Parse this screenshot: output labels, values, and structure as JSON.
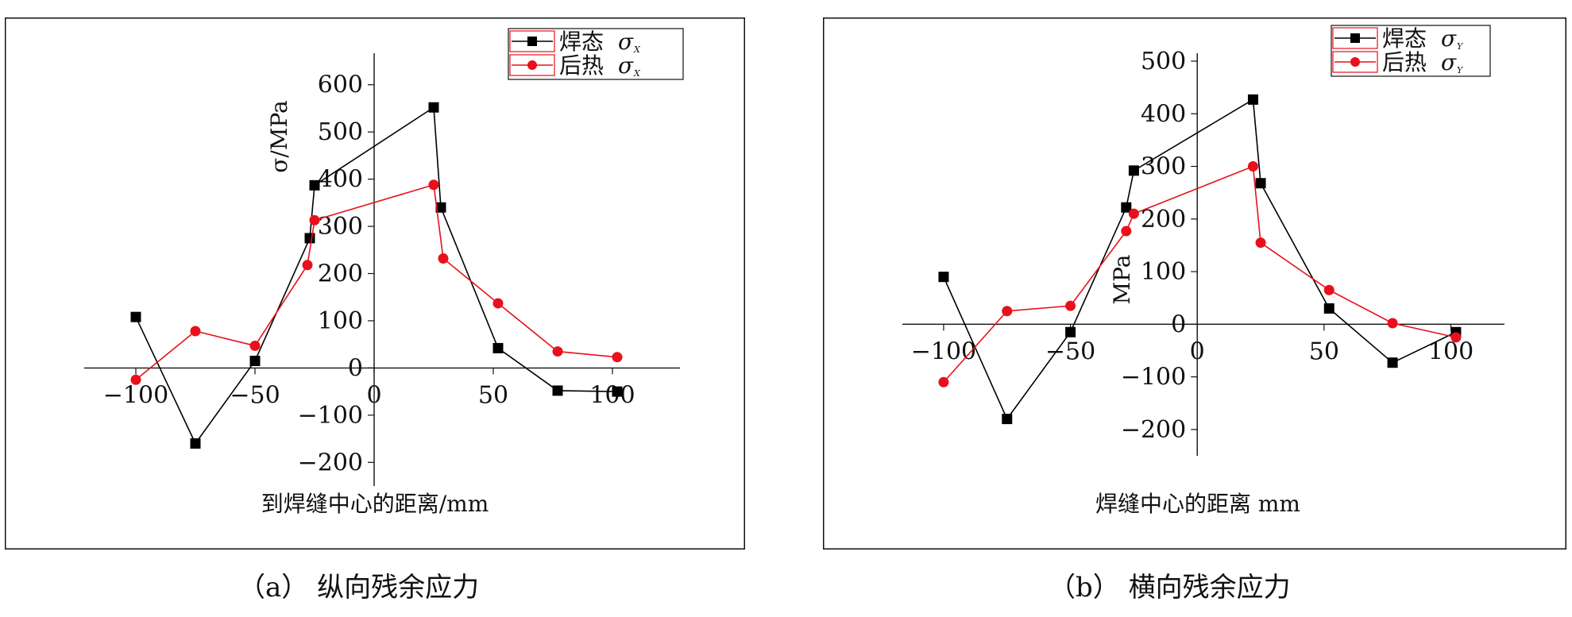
{
  "figures": [
    {
      "caption": "（a） 纵向残余应力"
    },
    {
      "caption": "（b） 横向残余应力"
    }
  ],
  "chart_data": [
    {
      "type": "line",
      "xlabel": "到焊缝中心的距离/mm",
      "ylabel": "σ/MPa",
      "xlim": [
        -115,
        125
      ],
      "ylim": [
        -250,
        650
      ],
      "xticks": [
        -100,
        -50,
        0,
        50,
        100
      ],
      "yticks": [
        -200,
        -100,
        0,
        100,
        200,
        300,
        400,
        500,
        600
      ],
      "xtick_labels": [
        "−100",
        "−50",
        "0",
        "50",
        "100"
      ],
      "ytick_labels": [
        "−200",
        "−100",
        "0",
        "100",
        "200",
        "300",
        "400",
        "500",
        "600"
      ],
      "legend_position": "top-right",
      "grid": false,
      "series": [
        {
          "name": "焊态",
          "subscript_symbol": "σ",
          "subscript": "X",
          "color": "#000000",
          "marker": "square",
          "x": [
            -100,
            -75,
            -50,
            -27,
            -25,
            25,
            28,
            52,
            77,
            102
          ],
          "y": [
            108,
            -160,
            15,
            275,
            387,
            552,
            340,
            42,
            -48,
            -50
          ]
        },
        {
          "name": "后热",
          "subscript_symbol": "σ",
          "subscript": "X",
          "color": "#e8101c",
          "marker": "circle",
          "x": [
            -100,
            -75,
            -50,
            -28,
            -25,
            25,
            29,
            52,
            77,
            102
          ],
          "y": [
            -25,
            78,
            47,
            218,
            313,
            388,
            232,
            137,
            35,
            23
          ]
        }
      ]
    },
    {
      "type": "line",
      "xlabel": "焊缝中心的距离  mm",
      "ylabel": "MPa",
      "xlim": [
        -110,
        118
      ],
      "ylim": [
        -250,
        500
      ],
      "xticks": [
        -100,
        -50,
        0,
        50,
        100
      ],
      "yticks": [
        -200,
        -100,
        0,
        100,
        200,
        300,
        400,
        500
      ],
      "xtick_labels": [
        "−100",
        "−50",
        "0",
        "50",
        "100"
      ],
      "ytick_labels": [
        "−200",
        "−100",
        "0",
        "100",
        "200",
        "300",
        "400",
        "500"
      ],
      "legend_position": "top-right",
      "grid": false,
      "series": [
        {
          "name": "焊态",
          "subscript_symbol": "σ",
          "subscript": "Y",
          "color": "#000000",
          "marker": "square",
          "x": [
            -100,
            -75,
            -50,
            -28,
            -25,
            22,
            25,
            52,
            77,
            102
          ],
          "y": [
            90,
            -180,
            -15,
            222,
            292,
            427,
            268,
            30,
            -73,
            -15
          ]
        },
        {
          "name": "后热",
          "subscript_symbol": "σ",
          "subscript": "Y",
          "color": "#e8101c",
          "marker": "circle",
          "x": [
            -100,
            -75,
            -50,
            -28,
            -25,
            22,
            25,
            52,
            77,
            102
          ],
          "y": [
            -110,
            25,
            35,
            177,
            210,
            300,
            155,
            65,
            2,
            -25
          ]
        }
      ]
    }
  ]
}
